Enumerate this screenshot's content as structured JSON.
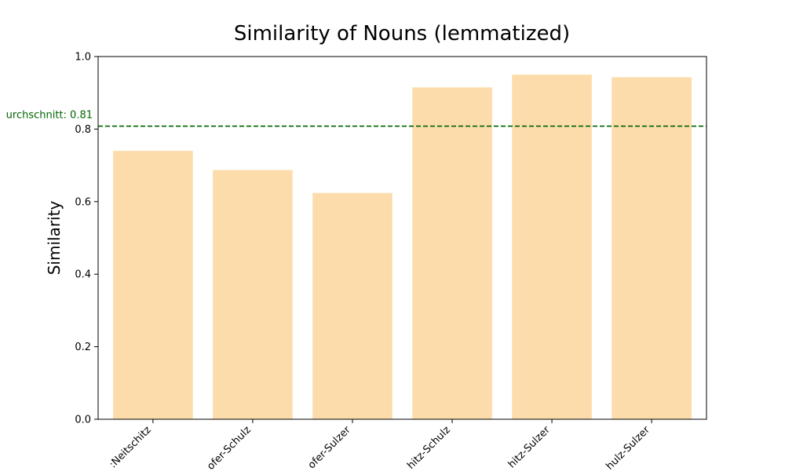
{
  "chart_data": {
    "type": "bar",
    "title": "Similarity of Nouns (lemmatized)",
    "xlabel": "",
    "ylabel": "Similarity",
    "ylim": [
      0,
      1.0
    ],
    "yticks": [
      "0.0",
      "0.2",
      "0.4",
      "0.6",
      "0.8",
      "1.0"
    ],
    "categories": [
      ":Neitschitz",
      "ofer-Schulz",
      "ofer-Sulzer",
      "hitz-Schulz",
      "hitz-Sulzer",
      "hulz-Sulzer"
    ],
    "values": [
      0.74,
      0.687,
      0.624,
      0.915,
      0.95,
      0.943
    ],
    "bar_color": "#fddcab",
    "reference_line": {
      "value": 0.808,
      "label": "urchschnitt: 0.81",
      "color": "#006400",
      "style": "dashed"
    },
    "grid": false,
    "legend": "none"
  }
}
